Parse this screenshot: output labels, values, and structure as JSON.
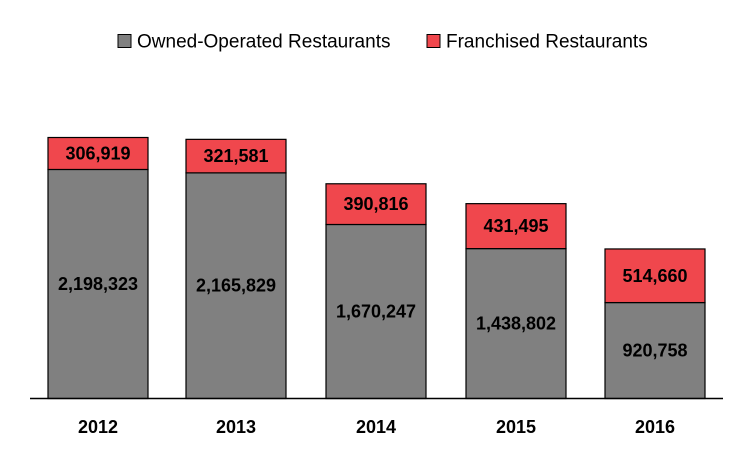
{
  "chart_data": {
    "type": "bar",
    "stacked": true,
    "categories": [
      "2012",
      "2013",
      "2014",
      "2015",
      "2016"
    ],
    "series": [
      {
        "name": "Owned-Operated Restaurants",
        "values": [
          2198323,
          2165829,
          1670247,
          1438802,
          920758
        ],
        "labels": [
          "2,198,323",
          "2,165,829",
          "1,670,247",
          "1,438,802",
          "920,758"
        ],
        "color": "#808080"
      },
      {
        "name": "Franchised Restaurants",
        "values": [
          306919,
          321581,
          390816,
          431495,
          514660
        ],
        "labels": [
          "306,919",
          "321,581",
          "390,816",
          "431,495",
          "514,660"
        ],
        "color": "#f0474d"
      }
    ],
    "ylim": [
      0,
      2505242
    ],
    "grid": false,
    "legend_position": "top",
    "title": "",
    "xlabel": "",
    "ylabel": ""
  }
}
